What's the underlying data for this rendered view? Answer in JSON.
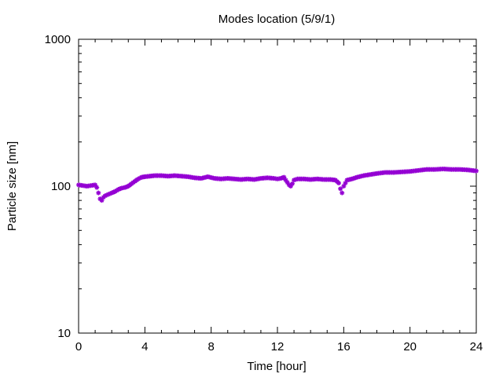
{
  "chart_data": {
    "type": "scatter",
    "title": "Modes location (5/9/1)",
    "xlabel": "Time [hour]",
    "ylabel": "Particle size [nm]",
    "xlim": [
      0,
      24
    ],
    "ylim": [
      10,
      1000
    ],
    "yscale": "log",
    "xticks": [
      0,
      4,
      8,
      12,
      16,
      20,
      24
    ],
    "yticks": [
      10,
      100,
      1000
    ],
    "grid": false,
    "marker_color": "#9400D3",
    "marker": "asterisk",
    "series": [
      {
        "x": [
          0,
          0.25,
          0.5,
          0.75,
          1.0,
          1.1,
          1.2,
          1.3,
          1.4,
          1.5,
          1.6,
          1.8,
          2.0,
          2.2,
          2.4,
          2.6,
          2.8,
          3.0,
          3.2,
          3.4,
          3.6,
          3.8,
          4.0,
          4.3,
          4.6,
          5.0,
          5.4,
          5.8,
          6.2,
          6.6,
          7.0,
          7.4,
          7.8,
          8.2,
          8.6,
          9.0,
          9.4,
          9.8,
          10.2,
          10.6,
          11.0,
          11.4,
          11.8,
          12.0,
          12.2,
          12.4,
          12.5,
          12.6,
          12.7,
          12.8,
          12.9,
          13.0,
          13.2,
          13.6,
          14.0,
          14.4,
          14.8,
          15.2,
          15.5,
          15.7,
          15.8,
          15.9,
          16.0,
          16.2,
          16.5,
          16.8,
          17.2,
          17.6,
          18.0,
          18.5,
          19.0,
          19.5,
          20.0,
          20.5,
          21.0,
          21.5,
          22.0,
          22.5,
          23.0,
          23.5,
          24.0
        ],
        "y": [
          102,
          101,
          100,
          101,
          102,
          98,
          90,
          82,
          80,
          84,
          86,
          88,
          90,
          92,
          95,
          97,
          98,
          100,
          104,
          108,
          112,
          115,
          116,
          117,
          118,
          118,
          117,
          118,
          117,
          116,
          114,
          113,
          116,
          113,
          112,
          113,
          112,
          111,
          112,
          111,
          113,
          114,
          113,
          112,
          113,
          115,
          110,
          106,
          102,
          100,
          104,
          110,
          112,
          112,
          111,
          112,
          111,
          111,
          110,
          105,
          96,
          90,
          100,
          110,
          112,
          115,
          118,
          120,
          122,
          124,
          124,
          125,
          126,
          128,
          130,
          130,
          131,
          130,
          130,
          129,
          127
        ]
      }
    ]
  }
}
